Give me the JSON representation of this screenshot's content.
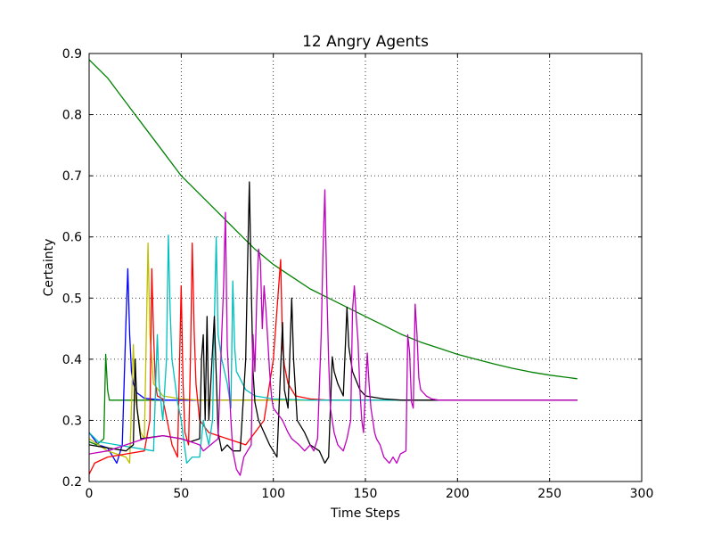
{
  "chart_data": {
    "type": "line",
    "title": "12 Angry Agents",
    "xlabel": "Time Steps",
    "ylabel": "Certainty",
    "xlim": [
      0,
      300
    ],
    "ylim": [
      0.2,
      0.9
    ],
    "xticks": [
      0,
      50,
      100,
      150,
      200,
      250,
      300
    ],
    "yticks": [
      0.2,
      0.3,
      0.4,
      0.5,
      0.6,
      0.7,
      0.8,
      0.9
    ],
    "xtick_labels": [
      "0",
      "50",
      "100",
      "150",
      "200",
      "250",
      "300"
    ],
    "ytick_labels": [
      "0.2",
      "0.3",
      "0.4",
      "0.5",
      "0.6",
      "0.7",
      "0.8",
      "0.9"
    ],
    "grid": true,
    "legend": false,
    "series": [
      {
        "color": "#008000",
        "points": [
          [
            0,
            0.89
          ],
          [
            10,
            0.86
          ],
          [
            20,
            0.82
          ],
          [
            30,
            0.78
          ],
          [
            40,
            0.74
          ],
          [
            50,
            0.7
          ],
          [
            60,
            0.67
          ],
          [
            70,
            0.64
          ],
          [
            80,
            0.61
          ],
          [
            90,
            0.58
          ],
          [
            100,
            0.555
          ],
          [
            110,
            0.535
          ],
          [
            120,
            0.515
          ],
          [
            130,
            0.5
          ],
          [
            140,
            0.485
          ],
          [
            150,
            0.47
          ],
          [
            160,
            0.455
          ],
          [
            170,
            0.44
          ],
          [
            180,
            0.428
          ],
          [
            190,
            0.418
          ],
          [
            200,
            0.408
          ],
          [
            210,
            0.4
          ],
          [
            220,
            0.392
          ],
          [
            230,
            0.385
          ],
          [
            240,
            0.379
          ],
          [
            250,
            0.374
          ],
          [
            260,
            0.37
          ],
          [
            265,
            0.368
          ]
        ]
      },
      {
        "color": "#008000",
        "points": [
          [
            0,
            0.265
          ],
          [
            4,
            0.26
          ],
          [
            8,
            0.27
          ],
          [
            9,
            0.408
          ],
          [
            10,
            0.35
          ],
          [
            11,
            0.333
          ],
          [
            265,
            0.333
          ]
        ]
      },
      {
        "color": "#0000ff",
        "points": [
          [
            0,
            0.28
          ],
          [
            5,
            0.26
          ],
          [
            10,
            0.255
          ],
          [
            15,
            0.23
          ],
          [
            18,
            0.26
          ],
          [
            20,
            0.46
          ],
          [
            21,
            0.548
          ],
          [
            22,
            0.44
          ],
          [
            23,
            0.38
          ],
          [
            24,
            0.36
          ],
          [
            26,
            0.345
          ],
          [
            30,
            0.336
          ],
          [
            40,
            0.333
          ],
          [
            265,
            0.333
          ]
        ]
      },
      {
        "color": "#bfbf00",
        "points": [
          [
            0,
            0.27
          ],
          [
            10,
            0.25
          ],
          [
            20,
            0.24
          ],
          [
            22,
            0.23
          ],
          [
            24,
            0.424
          ],
          [
            25,
            0.34
          ],
          [
            28,
            0.28
          ],
          [
            30,
            0.27
          ],
          [
            32,
            0.59
          ],
          [
            33,
            0.44
          ],
          [
            35,
            0.36
          ],
          [
            40,
            0.34
          ],
          [
            50,
            0.335
          ],
          [
            60,
            0.333
          ],
          [
            265,
            0.333
          ]
        ]
      },
      {
        "color": "#ff0000",
        "points": [
          [
            0,
            0.212
          ],
          [
            3,
            0.23
          ],
          [
            10,
            0.24
          ],
          [
            20,
            0.245
          ],
          [
            30,
            0.25
          ],
          [
            33,
            0.3
          ],
          [
            34,
            0.548
          ],
          [
            35,
            0.44
          ],
          [
            36,
            0.36
          ],
          [
            37,
            0.34
          ],
          [
            40,
            0.335
          ],
          [
            45,
            0.26
          ],
          [
            48,
            0.24
          ],
          [
            50,
            0.52
          ],
          [
            51,
            0.36
          ],
          [
            52,
            0.28
          ],
          [
            54,
            0.26
          ],
          [
            55,
            0.4
          ],
          [
            56,
            0.59
          ],
          [
            57,
            0.45
          ],
          [
            58,
            0.36
          ],
          [
            60,
            0.3
          ],
          [
            65,
            0.28
          ],
          [
            75,
            0.27
          ],
          [
            85,
            0.26
          ],
          [
            95,
            0.3
          ],
          [
            100,
            0.4
          ],
          [
            104,
            0.563
          ],
          [
            105,
            0.42
          ],
          [
            106,
            0.39
          ],
          [
            108,
            0.36
          ],
          [
            112,
            0.34
          ],
          [
            120,
            0.335
          ],
          [
            130,
            0.333
          ],
          [
            265,
            0.333
          ]
        ]
      },
      {
        "color": "#00bfbf",
        "points": [
          [
            0,
            0.28
          ],
          [
            5,
            0.265
          ],
          [
            15,
            0.26
          ],
          [
            25,
            0.255
          ],
          [
            35,
            0.25
          ],
          [
            37,
            0.44
          ],
          [
            38,
            0.36
          ],
          [
            40,
            0.3
          ],
          [
            42,
            0.4
          ],
          [
            43,
            0.603
          ],
          [
            44,
            0.48
          ],
          [
            45,
            0.4
          ],
          [
            48,
            0.33
          ],
          [
            50,
            0.3
          ],
          [
            53,
            0.23
          ],
          [
            56,
            0.24
          ],
          [
            60,
            0.24
          ],
          [
            62,
            0.3
          ],
          [
            65,
            0.26
          ],
          [
            67,
            0.3
          ],
          [
            68,
            0.46
          ],
          [
            69,
            0.6
          ],
          [
            70,
            0.44
          ],
          [
            72,
            0.4
          ],
          [
            75,
            0.36
          ],
          [
            77,
            0.32
          ],
          [
            78,
            0.528
          ],
          [
            79,
            0.42
          ],
          [
            80,
            0.38
          ],
          [
            85,
            0.35
          ],
          [
            90,
            0.34
          ],
          [
            100,
            0.335
          ],
          [
            120,
            0.333
          ],
          [
            265,
            0.333
          ]
        ]
      },
      {
        "color": "#000000",
        "points": [
          [
            0,
            0.26
          ],
          [
            10,
            0.255
          ],
          [
            20,
            0.25
          ],
          [
            24,
            0.26
          ],
          [
            25,
            0.4
          ],
          [
            26,
            0.32
          ],
          [
            28,
            0.27
          ],
          [
            40,
            0.275
          ],
          [
            50,
            0.27
          ],
          [
            55,
            0.265
          ],
          [
            60,
            0.27
          ],
          [
            61,
            0.4
          ],
          [
            62,
            0.44
          ],
          [
            63,
            0.3
          ],
          [
            64,
            0.47
          ],
          [
            65,
            0.3
          ],
          [
            68,
            0.47
          ],
          [
            70,
            0.28
          ],
          [
            72,
            0.25
          ],
          [
            75,
            0.26
          ],
          [
            78,
            0.25
          ],
          [
            82,
            0.25
          ],
          [
            85,
            0.4
          ],
          [
            86,
            0.55
          ],
          [
            87,
            0.69
          ],
          [
            88,
            0.52
          ],
          [
            89,
            0.38
          ],
          [
            90,
            0.33
          ],
          [
            92,
            0.3
          ],
          [
            95,
            0.28
          ],
          [
            98,
            0.26
          ],
          [
            102,
            0.24
          ],
          [
            105,
            0.46
          ],
          [
            106,
            0.35
          ],
          [
            108,
            0.32
          ],
          [
            110,
            0.5
          ],
          [
            111,
            0.4
          ],
          [
            113,
            0.3
          ],
          [
            117,
            0.28
          ],
          [
            120,
            0.26
          ],
          [
            125,
            0.25
          ],
          [
            128,
            0.23
          ],
          [
            130,
            0.24
          ],
          [
            132,
            0.404
          ],
          [
            133,
            0.38
          ],
          [
            135,
            0.36
          ],
          [
            138,
            0.34
          ],
          [
            140,
            0.485
          ],
          [
            141,
            0.42
          ],
          [
            143,
            0.38
          ],
          [
            147,
            0.35
          ],
          [
            150,
            0.34
          ],
          [
            160,
            0.335
          ],
          [
            170,
            0.333
          ],
          [
            265,
            0.333
          ]
        ]
      },
      {
        "color": "#bf00bf",
        "points": [
          [
            0,
            0.245
          ],
          [
            10,
            0.25
          ],
          [
            20,
            0.26
          ],
          [
            30,
            0.27
          ],
          [
            40,
            0.275
          ],
          [
            50,
            0.27
          ],
          [
            55,
            0.265
          ],
          [
            60,
            0.26
          ],
          [
            62,
            0.25
          ],
          [
            70,
            0.27
          ],
          [
            72,
            0.44
          ],
          [
            73,
            0.52
          ],
          [
            74,
            0.64
          ],
          [
            75,
            0.42
          ],
          [
            77,
            0.3
          ],
          [
            78,
            0.25
          ],
          [
            80,
            0.22
          ],
          [
            82,
            0.21
          ],
          [
            84,
            0.24
          ],
          [
            86,
            0.25
          ],
          [
            88,
            0.26
          ],
          [
            89,
            0.44
          ],
          [
            90,
            0.38
          ],
          [
            91,
            0.5
          ],
          [
            92,
            0.58
          ],
          [
            93,
            0.56
          ],
          [
            94,
            0.45
          ],
          [
            95,
            0.52
          ],
          [
            96,
            0.48
          ],
          [
            97,
            0.43
          ],
          [
            98,
            0.38
          ],
          [
            99,
            0.34
          ],
          [
            100,
            0.32
          ],
          [
            105,
            0.3
          ],
          [
            108,
            0.28
          ],
          [
            110,
            0.27
          ],
          [
            114,
            0.26
          ],
          [
            117,
            0.25
          ],
          [
            120,
            0.26
          ],
          [
            122,
            0.25
          ],
          [
            124,
            0.27
          ],
          [
            126,
            0.44
          ],
          [
            127,
            0.58
          ],
          [
            128,
            0.677
          ],
          [
            129,
            0.52
          ],
          [
            130,
            0.4
          ],
          [
            131,
            0.32
          ],
          [
            133,
            0.28
          ],
          [
            135,
            0.26
          ],
          [
            138,
            0.25
          ],
          [
            140,
            0.27
          ],
          [
            142,
            0.3
          ],
          [
            143,
            0.48
          ],
          [
            144,
            0.52
          ],
          [
            145,
            0.47
          ],
          [
            146,
            0.43
          ],
          [
            147,
            0.35
          ],
          [
            148,
            0.3
          ],
          [
            149,
            0.28
          ],
          [
            150,
            0.35
          ],
          [
            151,
            0.41
          ],
          [
            152,
            0.36
          ],
          [
            153,
            0.32
          ],
          [
            154,
            0.3
          ],
          [
            155,
            0.28
          ],
          [
            156,
            0.27
          ],
          [
            158,
            0.26
          ],
          [
            160,
            0.24
          ],
          [
            163,
            0.23
          ],
          [
            165,
            0.24
          ],
          [
            167,
            0.23
          ],
          [
            169,
            0.245
          ],
          [
            172,
            0.25
          ],
          [
            173,
            0.44
          ],
          [
            174,
            0.41
          ],
          [
            175,
            0.33
          ],
          [
            176,
            0.32
          ],
          [
            177,
            0.49
          ],
          [
            178,
            0.44
          ],
          [
            179,
            0.37
          ],
          [
            180,
            0.35
          ],
          [
            183,
            0.34
          ],
          [
            186,
            0.335
          ],
          [
            190,
            0.333
          ],
          [
            265,
            0.333
          ]
        ]
      }
    ]
  }
}
